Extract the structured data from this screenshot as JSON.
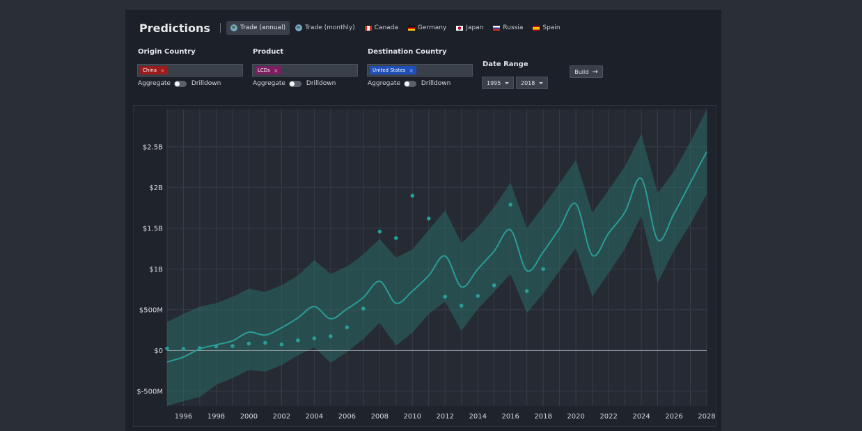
{
  "header": {
    "title": "Predictions",
    "tabs": [
      {
        "label": "Trade (annual)",
        "icon": "globe-icon",
        "active": true
      },
      {
        "label": "Trade (monthly)",
        "icon": "globe-icon",
        "active": false
      },
      {
        "label": "Canada",
        "icon": "canada-flag-icon",
        "active": false
      },
      {
        "label": "Germany",
        "icon": "germany-flag-icon",
        "active": false
      },
      {
        "label": "Japan",
        "icon": "japan-flag-icon",
        "active": false
      },
      {
        "label": "Russia",
        "icon": "russia-flag-icon",
        "active": false
      },
      {
        "label": "Spain",
        "icon": "spain-flag-icon",
        "active": false
      }
    ]
  },
  "filters": {
    "origin": {
      "label": "Origin Country",
      "tag": "China",
      "tag_color": "#9b1c1c"
    },
    "product": {
      "label": "Product",
      "tag": "LCDs",
      "tag_color": "#7a1f62"
    },
    "destination": {
      "label": "Destination Country",
      "tag": "United States",
      "tag_color": "#1f4fb8"
    },
    "toggle_left": "Aggregate",
    "toggle_right": "Drilldown",
    "remove_glyph": "×",
    "date_range": {
      "label": "Date Range",
      "start": "1995",
      "end": "2018"
    },
    "build": {
      "label": "Build",
      "icon": "arrow-right-icon"
    }
  },
  "chart_data": {
    "type": "line",
    "y_tick_labels": [
      "$2.5B",
      "$2B",
      "$1.5B",
      "$1B",
      "$500M",
      "$0",
      "$-500M"
    ],
    "y_ticks": [
      2500,
      2000,
      1500,
      1000,
      500,
      0,
      -500
    ],
    "x_tick_labels": [
      "1996",
      "1998",
      "2000",
      "2002",
      "2004",
      "2006",
      "2008",
      "2010",
      "2012",
      "2014",
      "2016",
      "2018",
      "2020",
      "2022",
      "2024",
      "2026",
      "2028"
    ],
    "xlim": [
      1995,
      2028
    ],
    "ylim": [
      -680,
      2960
    ],
    "units": "millions USD",
    "colors": {
      "line": "#2a9d98",
      "band": "#2a6a64",
      "points": "#2a9d98",
      "zero_line": "#9aa0a8",
      "grid": "#383d47"
    },
    "series": [
      {
        "kind": "observed",
        "x": [
          1995,
          1996,
          1997,
          1998,
          1999,
          2000,
          2001,
          2002,
          2003,
          2004,
          2005,
          2006,
          2007,
          2008,
          2009,
          2010,
          2011,
          2012,
          2013,
          2014,
          2015,
          2016,
          2017,
          2018
        ],
        "y": [
          25,
          20,
          30,
          50,
          55,
          85,
          95,
          75,
          125,
          150,
          175,
          285,
          515,
          1460,
          1380,
          1900,
          1620,
          660,
          550,
          670,
          800,
          1790,
          730,
          1000
        ]
      },
      {
        "kind": "forecast",
        "x": [
          1995,
          1996,
          1997,
          1998,
          1999,
          2000,
          2001,
          2002,
          2003,
          2004,
          2005,
          2006,
          2007,
          2008,
          2009,
          2010,
          2011,
          2012,
          2013,
          2014,
          2015,
          2016,
          2017,
          2018,
          2019,
          2020,
          2021,
          2022,
          2023,
          2024,
          2025,
          2026,
          2027,
          2028
        ],
        "y": [
          -140,
          -80,
          20,
          70,
          120,
          225,
          190,
          280,
          400,
          540,
          390,
          510,
          650,
          850,
          580,
          730,
          920,
          1160,
          780,
          1000,
          1220,
          1480,
          980,
          1210,
          1500,
          1800,
          1170,
          1440,
          1700,
          2110,
          1360,
          1680,
          2060,
          2440
        ]
      },
      {
        "kind": "band_upper",
        "x": [
          1995,
          1996,
          1997,
          1998,
          1999,
          2000,
          2001,
          2002,
          2003,
          2004,
          2005,
          2006,
          2007,
          2008,
          2009,
          2010,
          2011,
          2012,
          2013,
          2014,
          2015,
          2016,
          2017,
          2018,
          2019,
          2020,
          2021,
          2022,
          2023,
          2024,
          2025,
          2026,
          2027,
          2028
        ],
        "y": [
          350,
          450,
          540,
          580,
          660,
          760,
          720,
          800,
          920,
          1110,
          940,
          1030,
          1180,
          1370,
          1140,
          1240,
          1480,
          1720,
          1320,
          1510,
          1760,
          2060,
          1500,
          1770,
          2050,
          2340,
          1690,
          1970,
          2260,
          2660,
          1930,
          2200,
          2560,
          2960
        ]
      },
      {
        "kind": "band_lower",
        "x": [
          1995,
          1996,
          1997,
          1998,
          1999,
          2000,
          2001,
          2002,
          2003,
          2004,
          2005,
          2006,
          2007,
          2008,
          2009,
          2010,
          2011,
          2012,
          2013,
          2014,
          2015,
          2016,
          2017,
          2018,
          2019,
          2020,
          2021,
          2022,
          2023,
          2024,
          2025,
          2026,
          2027,
          2028
        ],
        "y": [
          -680,
          -620,
          -570,
          -420,
          -340,
          -240,
          -260,
          -180,
          -60,
          40,
          -150,
          -20,
          140,
          340,
          60,
          220,
          450,
          600,
          240,
          510,
          720,
          940,
          460,
          700,
          980,
          1260,
          660,
          950,
          1250,
          1650,
          830,
          1230,
          1550,
          1920
        ]
      }
    ]
  }
}
